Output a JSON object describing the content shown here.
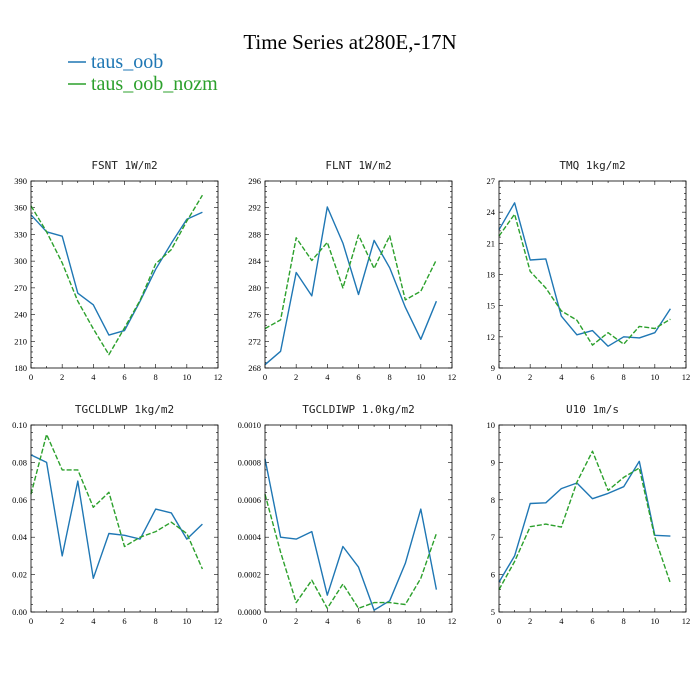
{
  "figure": {
    "title": "Time Series at280E,-17N"
  },
  "legend": [
    {
      "name": "taus_oob",
      "color": "#1f77b4"
    },
    {
      "name": "taus_oob_nozm",
      "color": "#2ca02c"
    }
  ],
  "chart_data": [
    {
      "type": "line",
      "title": "FSNT  1W/m2",
      "xlim": [
        0,
        12
      ],
      "xticks": [
        0,
        2,
        4,
        6,
        8,
        10,
        12
      ],
      "ylim": [
        180,
        390
      ],
      "yticks": [
        "180",
        "210",
        "240",
        "270",
        "300",
        "330",
        "360",
        "390"
      ],
      "x": [
        0,
        1,
        2,
        3,
        4,
        5,
        6,
        7,
        8,
        9,
        10,
        11
      ],
      "series": [
        {
          "name": "taus_oob",
          "color": "#1f77b4",
          "dashed": false,
          "values": [
            352,
            333,
            328,
            264,
            251,
            217,
            222,
            255,
            291,
            320,
            347,
            355
          ]
        },
        {
          "name": "taus_oob_nozm",
          "color": "#2ca02c",
          "dashed": true,
          "values": [
            362,
            333,
            298,
            255,
            224,
            195,
            225,
            256,
            297,
            313,
            345,
            374
          ]
        }
      ]
    },
    {
      "type": "line",
      "title": "FLNT  1W/m2",
      "xlim": [
        0,
        12
      ],
      "xticks": [
        0,
        2,
        4,
        6,
        8,
        10,
        12
      ],
      "ylim": [
        268,
        296
      ],
      "yticks": [
        "268",
        "272",
        "276",
        "280",
        "284",
        "288",
        "292",
        "296"
      ],
      "x": [
        0,
        1,
        2,
        3,
        4,
        5,
        6,
        7,
        8,
        9,
        10,
        11
      ],
      "series": [
        {
          "name": "taus_oob",
          "color": "#1f77b4",
          "dashed": false,
          "values": [
            268.5,
            270.5,
            282.3,
            278.8,
            292.1,
            286.7,
            279.0,
            287.1,
            283.0,
            277.1,
            272.3,
            278.0
          ]
        },
        {
          "name": "taus_oob_nozm",
          "color": "#2ca02c",
          "dashed": true,
          "values": [
            273.9,
            275.2,
            287.5,
            284.1,
            286.8,
            280.0,
            287.9,
            282.9,
            287.8,
            278.2,
            279.5,
            284.2
          ]
        }
      ]
    },
    {
      "type": "line",
      "title": "TMQ  1kg/m2",
      "xlim": [
        0,
        12
      ],
      "xticks": [
        0,
        2,
        4,
        6,
        8,
        10,
        12
      ],
      "ylim": [
        9,
        27
      ],
      "yticks": [
        "9",
        "12",
        "15",
        "18",
        "21",
        "24",
        "27"
      ],
      "x": [
        0,
        1,
        2,
        3,
        4,
        5,
        6,
        7,
        8,
        9,
        10,
        11
      ],
      "series": [
        {
          "name": "taus_oob",
          "color": "#1f77b4",
          "dashed": false,
          "values": [
            22.3,
            24.9,
            19.4,
            19.5,
            14.0,
            12.2,
            12.6,
            11.1,
            12.0,
            11.9,
            12.4,
            14.7
          ]
        },
        {
          "name": "taus_oob_nozm",
          "color": "#2ca02c",
          "dashed": true,
          "values": [
            21.7,
            23.8,
            18.3,
            16.7,
            14.5,
            13.6,
            11.2,
            12.4,
            11.3,
            13.0,
            12.8,
            13.7
          ]
        }
      ]
    },
    {
      "type": "line",
      "title": "TGCLDLWP  1kg/m2",
      "xlim": [
        0,
        12
      ],
      "xticks": [
        0,
        2,
        4,
        6,
        8,
        10,
        12
      ],
      "ylim": [
        0,
        0.1
      ],
      "yticks": [
        "0.00",
        "0.02",
        "0.04",
        "0.06",
        "0.08",
        "0.10"
      ],
      "x": [
        0,
        1,
        2,
        3,
        4,
        5,
        6,
        7,
        8,
        9,
        10,
        11
      ],
      "series": [
        {
          "name": "taus_oob",
          "color": "#1f77b4",
          "dashed": false,
          "values": [
            0.084,
            0.08,
            0.03,
            0.07,
            0.018,
            0.042,
            0.041,
            0.039,
            0.055,
            0.053,
            0.039,
            0.047
          ]
        },
        {
          "name": "taus_oob_nozm",
          "color": "#2ca02c",
          "dashed": true,
          "values": [
            0.063,
            0.095,
            0.076,
            0.076,
            0.056,
            0.064,
            0.035,
            0.04,
            0.043,
            0.048,
            0.042,
            0.023
          ]
        }
      ]
    },
    {
      "type": "line",
      "title": "TGCLDIWP  1.0kg/m2",
      "xlim": [
        0,
        12
      ],
      "xticks": [
        0,
        2,
        4,
        6,
        8,
        10,
        12
      ],
      "ylim": [
        0,
        0.001
      ],
      "yticks": [
        "0.0000",
        "0.0002",
        "0.0004",
        "0.0006",
        "0.0008",
        "0.0010"
      ],
      "x": [
        0,
        1,
        2,
        3,
        4,
        5,
        6,
        7,
        8,
        9,
        10,
        11
      ],
      "series": [
        {
          "name": "taus_oob",
          "color": "#1f77b4",
          "dashed": false,
          "values": [
            0.00082,
            0.0004,
            0.00039,
            0.00043,
            9e-05,
            0.00035,
            0.00024,
            1e-05,
            6e-05,
            0.00026,
            0.00055,
            0.00012
          ]
        },
        {
          "name": "taus_oob_nozm",
          "color": "#2ca02c",
          "dashed": true,
          "values": [
            0.00063,
            0.00032,
            5e-05,
            0.00017,
            2e-05,
            0.00015,
            2e-05,
            5e-05,
            5e-05,
            4e-05,
            0.00018,
            0.00042
          ]
        }
      ]
    },
    {
      "type": "line",
      "title": "U10  1m/s",
      "xlim": [
        0,
        12
      ],
      "xticks": [
        0,
        2,
        4,
        6,
        8,
        10,
        12
      ],
      "ylim": [
        5,
        10
      ],
      "yticks": [
        "5",
        "6",
        "7",
        "8",
        "9",
        "10"
      ],
      "x": [
        0,
        1,
        2,
        3,
        4,
        5,
        6,
        7,
        8,
        9,
        10,
        11
      ],
      "series": [
        {
          "name": "taus_oob",
          "color": "#1f77b4",
          "dashed": false,
          "values": [
            5.8,
            6.5,
            7.9,
            7.92,
            8.3,
            8.45,
            8.03,
            8.17,
            8.35,
            9.03,
            7.05,
            7.03
          ]
        },
        {
          "name": "taus_oob_nozm",
          "color": "#2ca02c",
          "dashed": true,
          "values": [
            5.6,
            6.35,
            7.28,
            7.35,
            7.27,
            8.47,
            9.3,
            8.25,
            8.6,
            8.85,
            7.0,
            5.77
          ]
        }
      ]
    }
  ]
}
